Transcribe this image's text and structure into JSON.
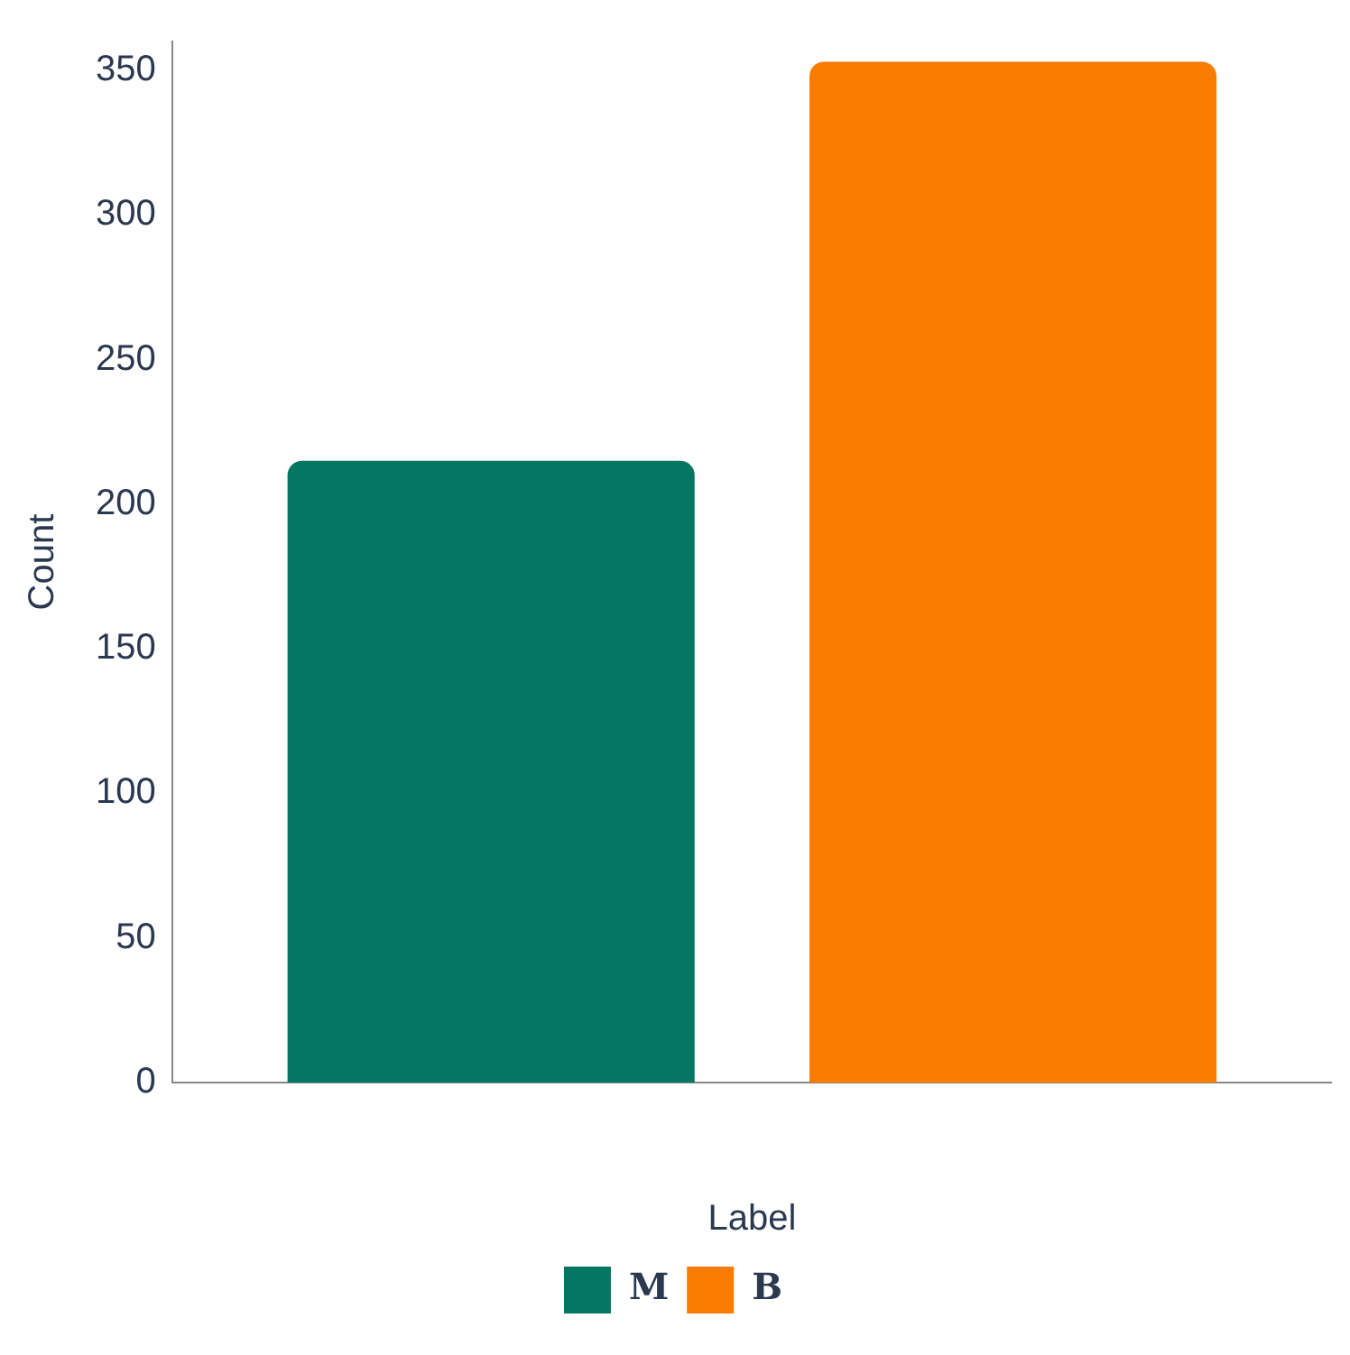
{
  "chart_data": {
    "type": "bar",
    "xlabel": "Label",
    "ylabel": "Count",
    "categories": [
      null
    ],
    "series": [
      {
        "name": "M",
        "color": "#047662",
        "values": [
          215
        ]
      },
      {
        "name": "B",
        "color": "#f97b00",
        "values": [
          353
        ]
      }
    ],
    "ylim": [
      0,
      360
    ],
    "yticks": [
      0,
      50,
      100,
      150,
      200,
      250,
      300,
      350
    ],
    "grid": false,
    "legend": "bottom"
  }
}
